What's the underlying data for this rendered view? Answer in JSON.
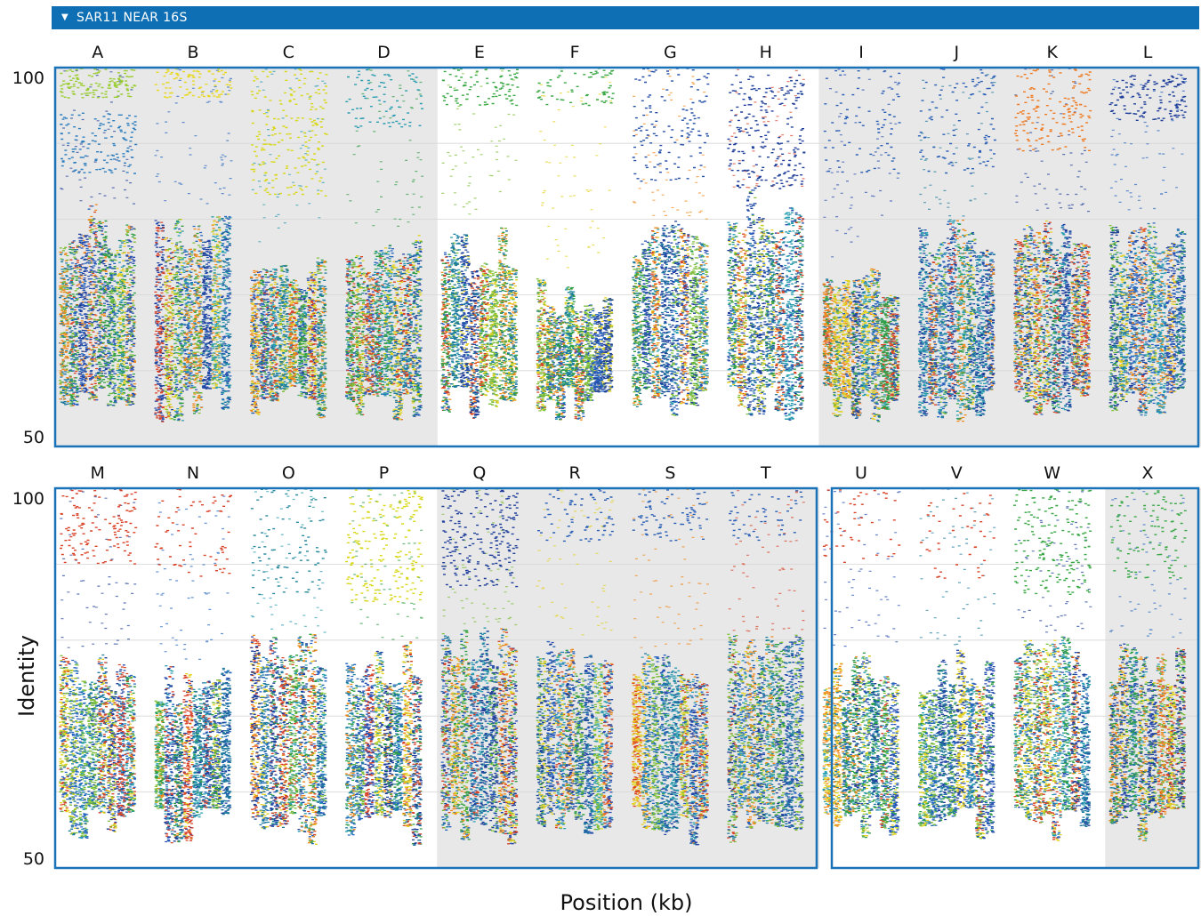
{
  "header": {
    "toggle_icon": "triangle-down-icon",
    "title": "SAR11 NEAR 16S"
  },
  "colors": {
    "header_bg": "#0f6fb4",
    "panel_border": "#1a73b8",
    "shade": "#e8e8e8",
    "gridline": "#d6d6d6",
    "palette": [
      "#1f3f9a",
      "#2866c0",
      "#2a9db0",
      "#2f9e44",
      "#7fbf3a",
      "#e2d21f",
      "#ef8a1e",
      "#d94328",
      "#2a4fb0",
      "#1d7a9e"
    ]
  },
  "chart_data": {
    "type": "scatter",
    "xlabel": "Position (kb)",
    "ylabel": "Identity",
    "ylim": [
      50,
      100
    ],
    "yticks": [
      100,
      50
    ],
    "grid": true,
    "rows": [
      {
        "samples": [
          {
            "label": "A",
            "shaded": true,
            "core_top": 82,
            "top_band": [
              96,
              100
            ],
            "top_band2": [
              86,
              94
            ],
            "band_color": "#9acd32",
            "band2_color": "#2f7fbf",
            "band_density": 0.6
          },
          {
            "label": "B",
            "shaded": true,
            "core_top": 82,
            "top_band": [
              96,
              100
            ],
            "band_color": "#e8d820",
            "band_density": 0.4
          },
          {
            "label": "C",
            "shaded": true,
            "core_top": 77,
            "top_band": [
              83,
              100
            ],
            "band_color": "#d8d818",
            "band_density": 0.9
          },
          {
            "label": "D",
            "shaded": true,
            "core_top": 79,
            "top_band": [
              92,
              100
            ],
            "band_color": "#2a9db0",
            "band_density": 0.35
          },
          {
            "label": "E",
            "shaded": false,
            "core_top": 79,
            "top_band": [
              95,
              100
            ],
            "band_color": "#39a845",
            "band_density": 0.4
          },
          {
            "label": "F",
            "shaded": false,
            "core_top": 73,
            "top_band": [
              95,
              100
            ],
            "band_color": "#39a845",
            "band_density": 0.3
          },
          {
            "label": "G",
            "shaded": false,
            "core_top": 80,
            "top_band": [
              85,
              100
            ],
            "band_color": "#2650a8",
            "band_density": 0.6
          },
          {
            "label": "H",
            "shaded": false,
            "core_top": 84,
            "top_band": [
              84,
              99
            ],
            "band_color": "#1f3f9a",
            "band_density": 1.0
          },
          {
            "label": "I",
            "shaded": true,
            "core_top": 75,
            "top_band": [
              86,
              100
            ],
            "band_color": "#2a5fb5",
            "band_density": 0.35
          },
          {
            "label": "J",
            "shaded": true,
            "core_top": 80,
            "top_band": [
              86,
              100
            ],
            "band_color": "#2a5fb5",
            "band_density": 0.45
          },
          {
            "label": "K",
            "shaded": true,
            "core_top": 81,
            "top_band": [
              89,
              100
            ],
            "band_color": "#ef7a20",
            "band_density": 0.7
          },
          {
            "label": "L",
            "shaded": true,
            "core_top": 81,
            "top_band": [
              93,
              99
            ],
            "band_color": "#1f3f9a",
            "band_density": 0.6
          }
        ]
      },
      {
        "samples": [
          {
            "label": "M",
            "shaded": false,
            "core_top": 79,
            "top_band": [
              90,
              100
            ],
            "band_color": "#d94328",
            "band_density": 0.6
          },
          {
            "label": "N",
            "shaded": false,
            "core_top": 77,
            "top_band": [
              88,
              100
            ],
            "band_color": "#d94328",
            "band_density": 0.3
          },
          {
            "label": "O",
            "shaded": false,
            "core_top": 81,
            "top_band": [
              86,
              100
            ],
            "band_color": "#2a8a9e",
            "band_density": 0.4
          },
          {
            "label": "P",
            "shaded": false,
            "core_top": 80,
            "top_band": [
              85,
              100
            ],
            "band_color": "#d8d818",
            "band_density": 0.9
          },
          {
            "label": "Q",
            "shaded": true,
            "core_top": 82,
            "top_band": [
              87,
              100
            ],
            "band_color": "#1f3f9a",
            "band_density": 1.0
          },
          {
            "label": "R",
            "shaded": true,
            "core_top": 80,
            "top_band": [
              93,
              100
            ],
            "band_color": "#2a5fb5",
            "band_density": 0.3
          },
          {
            "label": "S",
            "shaded": true,
            "core_top": 79,
            "top_band": [
              93,
              100
            ],
            "band_color": "#2a5fb5",
            "band_density": 0.35
          },
          {
            "label": "T",
            "shaded": true,
            "core_top": 81,
            "top_band": [
              93,
              100
            ],
            "band_color": "#2a5fb5",
            "band_density": 0.25
          },
          {
            "label": "U",
            "shaded": false,
            "core_top": 79,
            "top_band": [
              90,
              100
            ],
            "band_color": "#d94328",
            "band_density": 0.2
          },
          {
            "label": "V",
            "shaded": false,
            "core_top": 79,
            "top_band": [
              88,
              100
            ],
            "band_color": "#d94328",
            "band_density": 0.2
          },
          {
            "label": "W",
            "shaded": false,
            "core_top": 81,
            "top_band": [
              86,
              100
            ],
            "band_color": "#39a845",
            "band_density": 0.8
          },
          {
            "label": "X",
            "shaded": true,
            "core_top": 80,
            "top_band": [
              88,
              100
            ],
            "band_color": "#39a845",
            "band_density": 0.5
          }
        ]
      }
    ]
  }
}
